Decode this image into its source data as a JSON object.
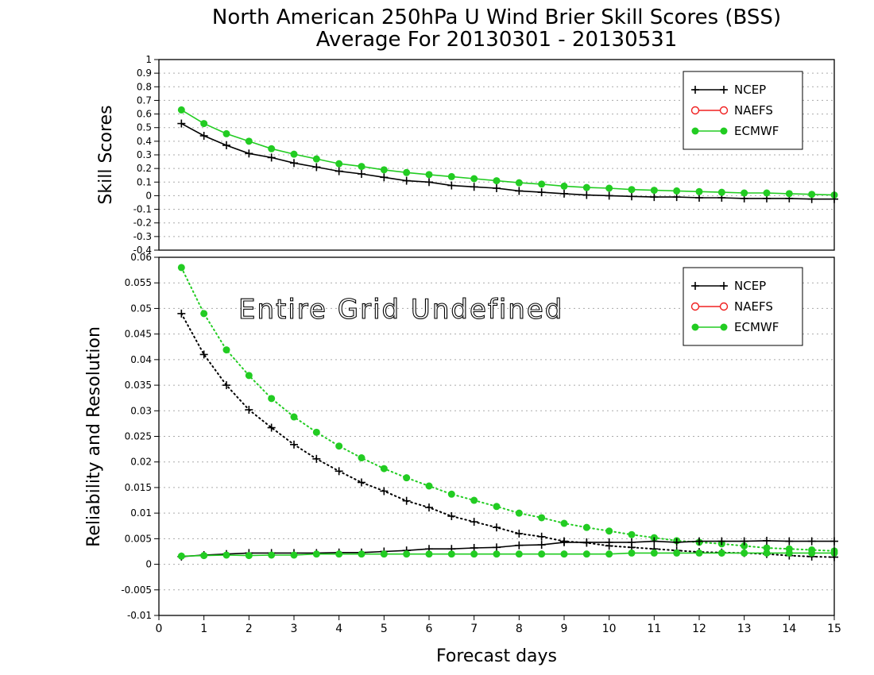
{
  "title_line1": "North American 250hPa U Wind Brier Skill Scores (BSS)",
  "title_line2": "Average For 20130301 - 20130531",
  "colors": {
    "ncep": "#000000",
    "naefs": "#f02020",
    "ecmwf": "#22cc22",
    "grid": "#aaaaaa"
  },
  "chart_data": [
    {
      "type": "line",
      "ylabel": "Skill Scores",
      "xlim": [
        0,
        15
      ],
      "ylim": [
        -0.4,
        1
      ],
      "grid": true,
      "legend": "top-right",
      "yticks": [
        "-0.4",
        "-0.3",
        "-0.2",
        "-0.1",
        "0",
        "0.1",
        "0.2",
        "0.3",
        "0.4",
        "0.5",
        "0.6",
        "0.7",
        "0.8",
        "0.9",
        "1"
      ],
      "legend_entries": [
        "NCEP",
        "NAEFS",
        "ECMWF"
      ],
      "x": [
        0.5,
        1,
        1.5,
        2,
        2.5,
        3,
        3.5,
        4,
        4.5,
        5,
        5.5,
        6,
        6.5,
        7,
        7.5,
        8,
        8.5,
        9,
        9.5,
        10,
        10.5,
        11,
        11.5,
        12,
        12.5,
        13,
        13.5,
        14,
        14.5,
        15
      ],
      "series": [
        {
          "name": "NCEP",
          "style": "solid-plus",
          "values": [
            0.53,
            0.44,
            0.37,
            0.31,
            0.28,
            0.24,
            0.21,
            0.18,
            0.16,
            0.135,
            0.11,
            0.1,
            0.075,
            0.065,
            0.055,
            0.035,
            0.025,
            0.015,
            0.005,
            0.0,
            -0.005,
            -0.01,
            -0.01,
            -0.015,
            -0.015,
            -0.02,
            -0.02,
            -0.02,
            -0.025,
            -0.025
          ]
        },
        {
          "name": "ECMWF",
          "style": "solid-dot",
          "values": [
            0.63,
            0.53,
            0.455,
            0.4,
            0.345,
            0.305,
            0.27,
            0.235,
            0.215,
            0.19,
            0.17,
            0.155,
            0.14,
            0.125,
            0.11,
            0.095,
            0.085,
            0.07,
            0.06,
            0.055,
            0.045,
            0.04,
            0.035,
            0.03,
            0.025,
            0.02,
            0.02,
            0.015,
            0.01,
            0.005
          ]
        }
      ]
    },
    {
      "type": "line",
      "ylabel": "Reliability and Resolution",
      "xlabel": "Forecast days",
      "xlim": [
        0,
        15
      ],
      "ylim": [
        -0.01,
        0.06
      ],
      "grid": true,
      "legend": "top-right",
      "annotation": "Entire Grid Undefined",
      "yticks": [
        "-0.01",
        "-0.005",
        "0",
        "0.005",
        "0.01",
        "0.015",
        "0.02",
        "0.025",
        "0.03",
        "0.035",
        "0.04",
        "0.045",
        "0.05",
        "0.055",
        "0.06"
      ],
      "xticks": [
        "0",
        "1",
        "2",
        "3",
        "4",
        "5",
        "6",
        "7",
        "8",
        "9",
        "10",
        "11",
        "12",
        "13",
        "14",
        "15"
      ],
      "legend_entries": [
        "NCEP",
        "NAEFS",
        "ECMWF"
      ],
      "x": [
        0.5,
        1,
        1.5,
        2,
        2.5,
        3,
        3.5,
        4,
        4.5,
        5,
        5.5,
        6,
        6.5,
        7,
        7.5,
        8,
        8.5,
        9,
        9.5,
        10,
        10.5,
        11,
        11.5,
        12,
        12.5,
        13,
        13.5,
        14,
        14.5,
        15
      ],
      "series": [
        {
          "name": "NCEP Resolution",
          "style": "dotted-plus",
          "values": [
            0.049,
            0.041,
            0.035,
            0.0302,
            0.0267,
            0.0234,
            0.0206,
            0.0182,
            0.016,
            0.0143,
            0.0124,
            0.0111,
            0.0094,
            0.0083,
            0.0072,
            0.006,
            0.0054,
            0.0045,
            0.0042,
            0.0036,
            0.0033,
            0.003,
            0.0027,
            0.0024,
            0.0023,
            0.0022,
            0.002,
            0.0017,
            0.0015,
            0.0014
          ]
        },
        {
          "name": "ECMWF Resolution",
          "style": "dotted-dot",
          "values": [
            0.058,
            0.049,
            0.0419,
            0.0369,
            0.0324,
            0.0288,
            0.0258,
            0.0231,
            0.0208,
            0.0187,
            0.0169,
            0.0153,
            0.0137,
            0.0125,
            0.0113,
            0.01,
            0.0091,
            0.008,
            0.0072,
            0.0065,
            0.0058,
            0.0052,
            0.0046,
            0.0043,
            0.004,
            0.0036,
            0.0032,
            0.003,
            0.0028,
            0.0026
          ]
        },
        {
          "name": "NCEP Reliability",
          "style": "solid-plus",
          "values": [
            0.0015,
            0.0018,
            0.002,
            0.0022,
            0.0022,
            0.0022,
            0.0022,
            0.0023,
            0.0023,
            0.0025,
            0.0027,
            0.003,
            0.003,
            0.0032,
            0.0033,
            0.0037,
            0.0038,
            0.0043,
            0.0043,
            0.0043,
            0.0043,
            0.0045,
            0.0043,
            0.0045,
            0.0045,
            0.0045,
            0.0046,
            0.0045,
            0.0045,
            0.0045
          ]
        },
        {
          "name": "ECMWF Reliability",
          "style": "solid-dot",
          "values": [
            0.0016,
            0.0017,
            0.0018,
            0.0017,
            0.0018,
            0.0018,
            0.002,
            0.002,
            0.002,
            0.002,
            0.002,
            0.002,
            0.002,
            0.002,
            0.002,
            0.002,
            0.002,
            0.002,
            0.002,
            0.002,
            0.0022,
            0.0022,
            0.0022,
            0.0022,
            0.0022,
            0.0022,
            0.0022,
            0.0022,
            0.0022,
            0.0022
          ]
        }
      ]
    }
  ]
}
